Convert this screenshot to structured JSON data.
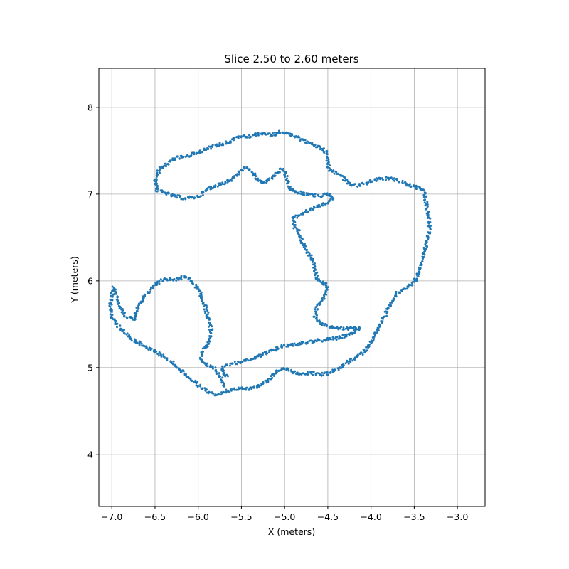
{
  "chart_data": {
    "type": "scatter",
    "title": "Slice 2.50 to 2.60 meters",
    "xlabel": "X (meters)",
    "ylabel": "Y (meters)",
    "xlim": [
      -7.15,
      -2.68
    ],
    "ylim": [
      3.4,
      8.45
    ],
    "xticks": [
      -7.0,
      -6.5,
      -6.0,
      -5.5,
      -5.0,
      -4.5,
      -4.0,
      -3.5,
      -3.0
    ],
    "xtick_labels": [
      "−7.0",
      "−6.5",
      "−6.0",
      "−5.5",
      "−5.0",
      "−4.5",
      "−4.0",
      "−3.5",
      "−3.0"
    ],
    "yticks": [
      4,
      5,
      6,
      7,
      8
    ],
    "ytick_labels": [
      "4",
      "5",
      "6",
      "7",
      "8"
    ],
    "grid": true,
    "color": "#1f77b4",
    "series": [
      {
        "paths": [
          [
            [
              -4.55,
              7.52
            ],
            [
              -4.75,
              7.6
            ],
            [
              -4.95,
              7.7
            ],
            [
              -5.05,
              7.72
            ],
            [
              -5.15,
              7.68
            ],
            [
              -5.25,
              7.7
            ],
            [
              -5.45,
              7.66
            ],
            [
              -5.55,
              7.66
            ],
            [
              -5.65,
              7.6
            ],
            [
              -5.8,
              7.56
            ],
            [
              -6.0,
              7.48
            ],
            [
              -6.15,
              7.43
            ],
            [
              -6.25,
              7.42
            ],
            [
              -6.35,
              7.35
            ],
            [
              -6.45,
              7.28
            ],
            [
              -6.5,
              7.15
            ],
            [
              -6.48,
              7.05
            ],
            [
              -6.3,
              6.98
            ],
            [
              -6.15,
              6.95
            ],
            [
              -6.0,
              6.97
            ],
            [
              -5.9,
              7.05
            ],
            [
              -5.8,
              7.1
            ],
            [
              -5.7,
              7.13
            ],
            [
              -5.6,
              7.18
            ],
            [
              -5.5,
              7.28
            ],
            [
              -5.45,
              7.3
            ],
            [
              -5.38,
              7.25
            ],
            [
              -5.3,
              7.16
            ],
            [
              -5.25,
              7.13
            ],
            [
              -5.15,
              7.18
            ],
            [
              -5.05,
              7.28
            ],
            [
              -5.0,
              7.27
            ],
            [
              -4.98,
              7.2
            ],
            [
              -4.95,
              7.08
            ],
            [
              -4.9,
              7.03
            ],
            [
              -4.75,
              7.0
            ],
            [
              -4.6,
              6.98
            ],
            [
              -4.5,
              7.0
            ],
            [
              -4.45,
              6.96
            ]
          ],
          [
            [
              -4.55,
              7.52
            ],
            [
              -4.5,
              7.45
            ],
            [
              -4.5,
              7.38
            ],
            [
              -4.48,
              7.28
            ],
            [
              -4.35,
              7.22
            ],
            [
              -4.25,
              7.12
            ],
            [
              -4.15,
              7.1
            ],
            [
              -4.05,
              7.13
            ],
            [
              -3.9,
              7.18
            ],
            [
              -3.75,
              7.18
            ],
            [
              -3.6,
              7.12
            ],
            [
              -3.5,
              7.08
            ],
            [
              -3.4,
              7.06
            ],
            [
              -3.38,
              7.0
            ],
            [
              -3.35,
              6.85
            ],
            [
              -3.32,
              6.65
            ],
            [
              -3.35,
              6.45
            ],
            [
              -3.4,
              6.28
            ],
            [
              -3.45,
              6.1
            ],
            [
              -3.5,
              5.98
            ],
            [
              -3.6,
              5.92
            ],
            [
              -3.7,
              5.85
            ],
            [
              -3.78,
              5.72
            ],
            [
              -3.85,
              5.58
            ],
            [
              -3.95,
              5.38
            ],
            [
              -4.05,
              5.22
            ],
            [
              -4.15,
              5.13
            ],
            [
              -4.3,
              5.04
            ],
            [
              -4.4,
              4.98
            ],
            [
              -4.5,
              4.93
            ],
            [
              -4.6,
              4.92
            ],
            [
              -4.7,
              4.94
            ],
            [
              -4.8,
              4.92
            ],
            [
              -4.9,
              4.95
            ],
            [
              -5.0,
              5.0
            ],
            [
              -5.1,
              4.95
            ],
            [
              -5.2,
              4.85
            ],
            [
              -5.3,
              4.78
            ],
            [
              -5.4,
              4.76
            ],
            [
              -5.5,
              4.76
            ],
            [
              -5.6,
              4.75
            ],
            [
              -5.7,
              4.72
            ],
            [
              -5.8,
              4.68
            ],
            [
              -5.9,
              4.72
            ],
            [
              -6.0,
              4.8
            ],
            [
              -6.1,
              4.88
            ],
            [
              -6.2,
              4.97
            ],
            [
              -6.3,
              5.06
            ],
            [
              -6.45,
              5.16
            ],
            [
              -6.6,
              5.24
            ],
            [
              -6.75,
              5.32
            ],
            [
              -6.85,
              5.4
            ],
            [
              -6.95,
              5.5
            ],
            [
              -7.0,
              5.58
            ],
            [
              -7.02,
              5.7
            ],
            [
              -7.0,
              5.85
            ],
            [
              -6.98,
              5.92
            ]
          ],
          [
            [
              -6.98,
              5.92
            ],
            [
              -6.9,
              5.7
            ],
            [
              -6.85,
              5.6
            ],
            [
              -6.75,
              5.55
            ],
            [
              -6.7,
              5.7
            ],
            [
              -6.6,
              5.85
            ],
            [
              -6.5,
              5.96
            ],
            [
              -6.4,
              6.02
            ],
            [
              -6.25,
              6.02
            ],
            [
              -6.15,
              6.05
            ],
            [
              -6.05,
              5.98
            ],
            [
              -5.98,
              5.85
            ],
            [
              -5.92,
              5.7
            ],
            [
              -5.88,
              5.55
            ],
            [
              -5.85,
              5.42
            ],
            [
              -5.88,
              5.28
            ],
            [
              -5.95,
              5.2
            ],
            [
              -5.97,
              5.1
            ],
            [
              -5.9,
              5.02
            ],
            [
              -5.8,
              4.98
            ],
            [
              -5.72,
              4.85
            ],
            [
              -5.7,
              4.78
            ]
          ],
          [
            [
              -4.45,
              6.96
            ],
            [
              -4.5,
              6.9
            ],
            [
              -4.65,
              6.84
            ],
            [
              -4.8,
              6.78
            ],
            [
              -4.9,
              6.72
            ],
            [
              -4.88,
              6.62
            ],
            [
              -4.82,
              6.55
            ],
            [
              -4.8,
              6.45
            ],
            [
              -4.75,
              6.35
            ],
            [
              -4.68,
              6.25
            ],
            [
              -4.65,
              6.12
            ],
            [
              -4.62,
              6.02
            ],
            [
              -4.52,
              5.96
            ],
            [
              -4.5,
              5.9
            ],
            [
              -4.55,
              5.8
            ],
            [
              -4.62,
              5.72
            ],
            [
              -4.65,
              5.6
            ],
            [
              -4.6,
              5.52
            ],
            [
              -4.5,
              5.48
            ],
            [
              -4.4,
              5.46
            ],
            [
              -4.3,
              5.45
            ],
            [
              -4.2,
              5.45
            ],
            [
              -4.12,
              5.46
            ],
            [
              -4.25,
              5.38
            ],
            [
              -4.4,
              5.34
            ],
            [
              -4.55,
              5.32
            ],
            [
              -4.7,
              5.3
            ],
            [
              -4.85,
              5.27
            ],
            [
              -5.0,
              5.25
            ],
            [
              -5.15,
              5.2
            ],
            [
              -5.3,
              5.13
            ],
            [
              -5.45,
              5.08
            ],
            [
              -5.6,
              5.05
            ],
            [
              -5.7,
              5.02
            ],
            [
              -5.72,
              4.95
            ],
            [
              -5.65,
              4.9
            ]
          ]
        ]
      }
    ]
  }
}
